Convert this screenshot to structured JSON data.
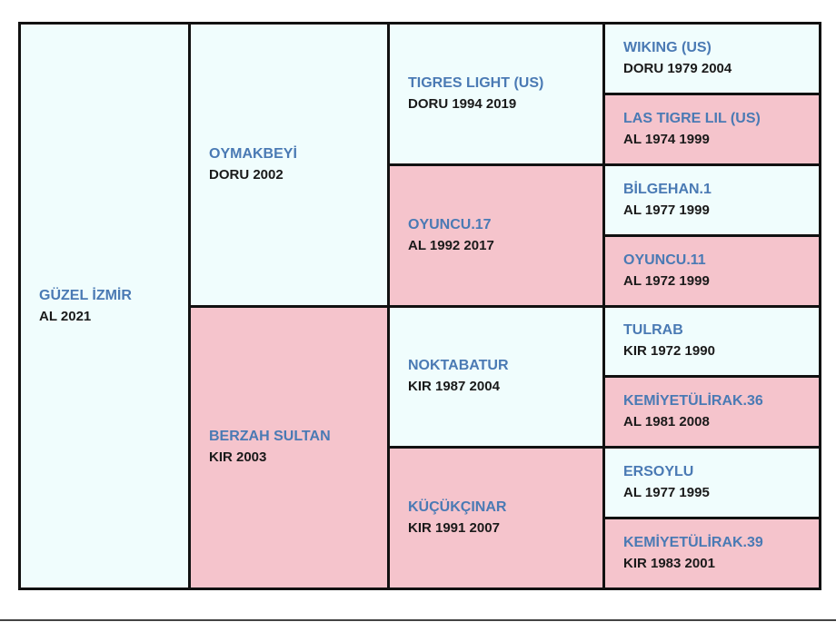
{
  "pedigree": {
    "subject": {
      "name": "GÜZEL İZMİR",
      "info": "AL 2021",
      "sex": "female"
    },
    "gen2": [
      {
        "name": "OYMAKBEYİ",
        "info": "DORU 2002",
        "sex": "male"
      },
      {
        "name": "BERZAH SULTAN",
        "info": "KIR 2003",
        "sex": "female"
      }
    ],
    "gen3": [
      {
        "name": "TIGRES LIGHT (US)",
        "info": "DORU 1994 2019",
        "sex": "male"
      },
      {
        "name": "OYUNCU.17",
        "info": "AL 1992 2017",
        "sex": "female"
      },
      {
        "name": "NOKTABATUR",
        "info": "KIR 1987 2004",
        "sex": "male"
      },
      {
        "name": "KÜÇÜKÇINAR",
        "info": "KIR 1991 2007",
        "sex": "female"
      }
    ],
    "gen4": [
      {
        "name": "WIKING (US)",
        "info": "DORU 1979 2004",
        "sex": "male"
      },
      {
        "name": "LAS TIGRE LIL (US)",
        "info": "AL 1974 1999",
        "sex": "female"
      },
      {
        "name": "BİLGEHAN.1",
        "info": "AL 1977 1999",
        "sex": "male"
      },
      {
        "name": "OYUNCU.11",
        "info": "AL 1972 1999",
        "sex": "female"
      },
      {
        "name": "TULRAB",
        "info": "KIR 1972 1990",
        "sex": "male"
      },
      {
        "name": "KEMİYETÜLİRAK.36",
        "info": "AL 1981 2008",
        "sex": "female"
      },
      {
        "name": "ERSOYLU",
        "info": "AL 1977 1995",
        "sex": "male"
      },
      {
        "name": "KEMİYETÜLİRAK.39",
        "info": "KIR 1983 2001",
        "sex": "female"
      }
    ]
  },
  "colors": {
    "male_bg": "#f0fdfd",
    "female_bg": "#f5c4cc",
    "name_text": "#4a7ab4",
    "info_text": "#1a1a1a",
    "border": "#111111"
  }
}
